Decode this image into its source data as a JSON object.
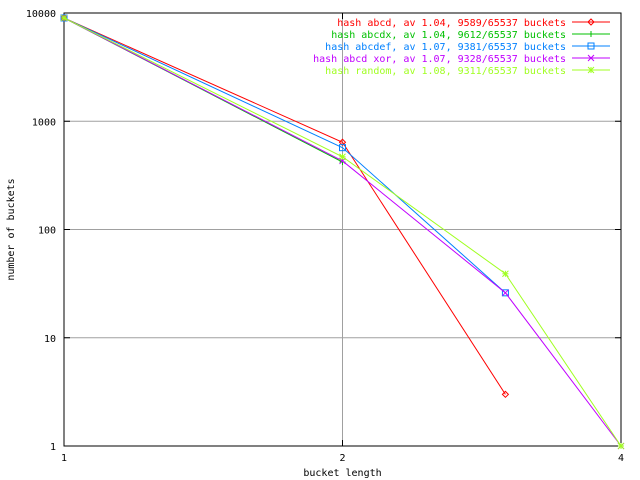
{
  "chart_data": {
    "type": "line",
    "title": "",
    "xlabel": "bucket length",
    "ylabel": "number of buckets",
    "x_scale": "log",
    "y_scale": "log",
    "xlim": [
      1,
      4
    ],
    "ylim": [
      1,
      10000
    ],
    "x_ticks": [
      {
        "value": 1,
        "label": "1"
      },
      {
        "value": 2,
        "label": "2"
      },
      {
        "value": 4,
        "label": "4"
      }
    ],
    "y_ticks": [
      {
        "value": 1,
        "label": "1"
      },
      {
        "value": 10,
        "label": "10"
      },
      {
        "value": 100,
        "label": "100"
      },
      {
        "value": 1000,
        "label": "1000"
      },
      {
        "value": 10000,
        "label": "10000"
      }
    ],
    "grid": true,
    "legend_position": "top-right",
    "series": [
      {
        "name": "hash abcd, av 1.04, 9589/65537 buckets",
        "color": "#ff0000",
        "marker": "diamond",
        "points": [
          [
            1,
            9000
          ],
          [
            2,
            640
          ],
          [
            3,
            3
          ]
        ]
      },
      {
        "name": "hash abcdx, av 1.04, 9612/65537 buckets",
        "color": "#00c000",
        "marker": "plus",
        "points": [
          [
            1,
            9000
          ],
          [
            2,
            420
          ]
        ]
      },
      {
        "name": "hash abcdef, av 1.07, 9381/65537 buckets",
        "color": "#0080ff",
        "marker": "square",
        "points": [
          [
            1,
            9000
          ],
          [
            2,
            570
          ],
          [
            3,
            26
          ]
        ]
      },
      {
        "name": "hash abcd xor, av 1.07, 9328/65537 buckets",
        "color": "#c000ff",
        "marker": "x",
        "points": [
          [
            1,
            9000
          ],
          [
            2,
            430
          ],
          [
            3,
            26
          ],
          [
            4,
            1
          ]
        ]
      },
      {
        "name": "hash random, av 1.08, 9311/65537 buckets",
        "color": "#a0ff20",
        "marker": "star",
        "points": [
          [
            1,
            9000
          ],
          [
            2,
            470
          ],
          [
            3,
            39
          ],
          [
            4,
            1
          ]
        ]
      }
    ]
  }
}
